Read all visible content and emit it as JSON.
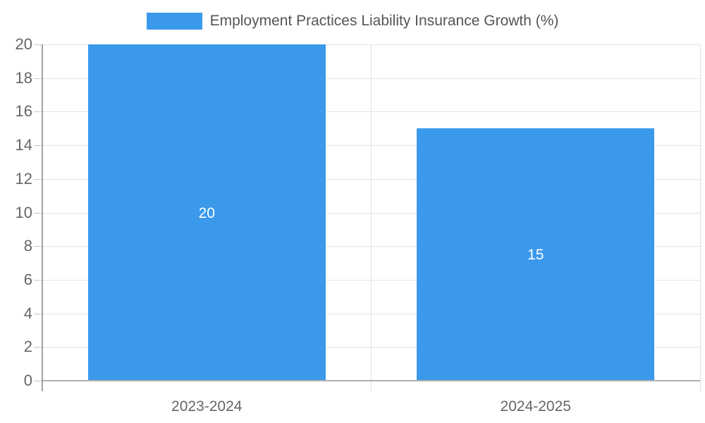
{
  "chart_data": {
    "type": "bar",
    "series_name": "Employment Practices Liability Insurance Growth (%)",
    "categories": [
      "2023-2024",
      "2024-2025"
    ],
    "values": [
      20,
      15
    ],
    "bar_labels": [
      "20",
      "15"
    ],
    "ylim": [
      0,
      20
    ],
    "yticks": [
      0,
      2,
      4,
      6,
      8,
      10,
      12,
      14,
      16,
      18,
      20
    ],
    "grid": true,
    "legend_position": "top",
    "colors": {
      "bar": "#3b99ec",
      "bar_label_text": "#ffffff",
      "legend_text": "#555555",
      "axis_text": "#666666",
      "gridline": "#e4e4e4",
      "divider": "#e0e0e0",
      "baseline": "#b0b0b0",
      "axis_line": "#a0a0a0",
      "tick": "#c9c9c9",
      "background": "#ffffff"
    }
  }
}
